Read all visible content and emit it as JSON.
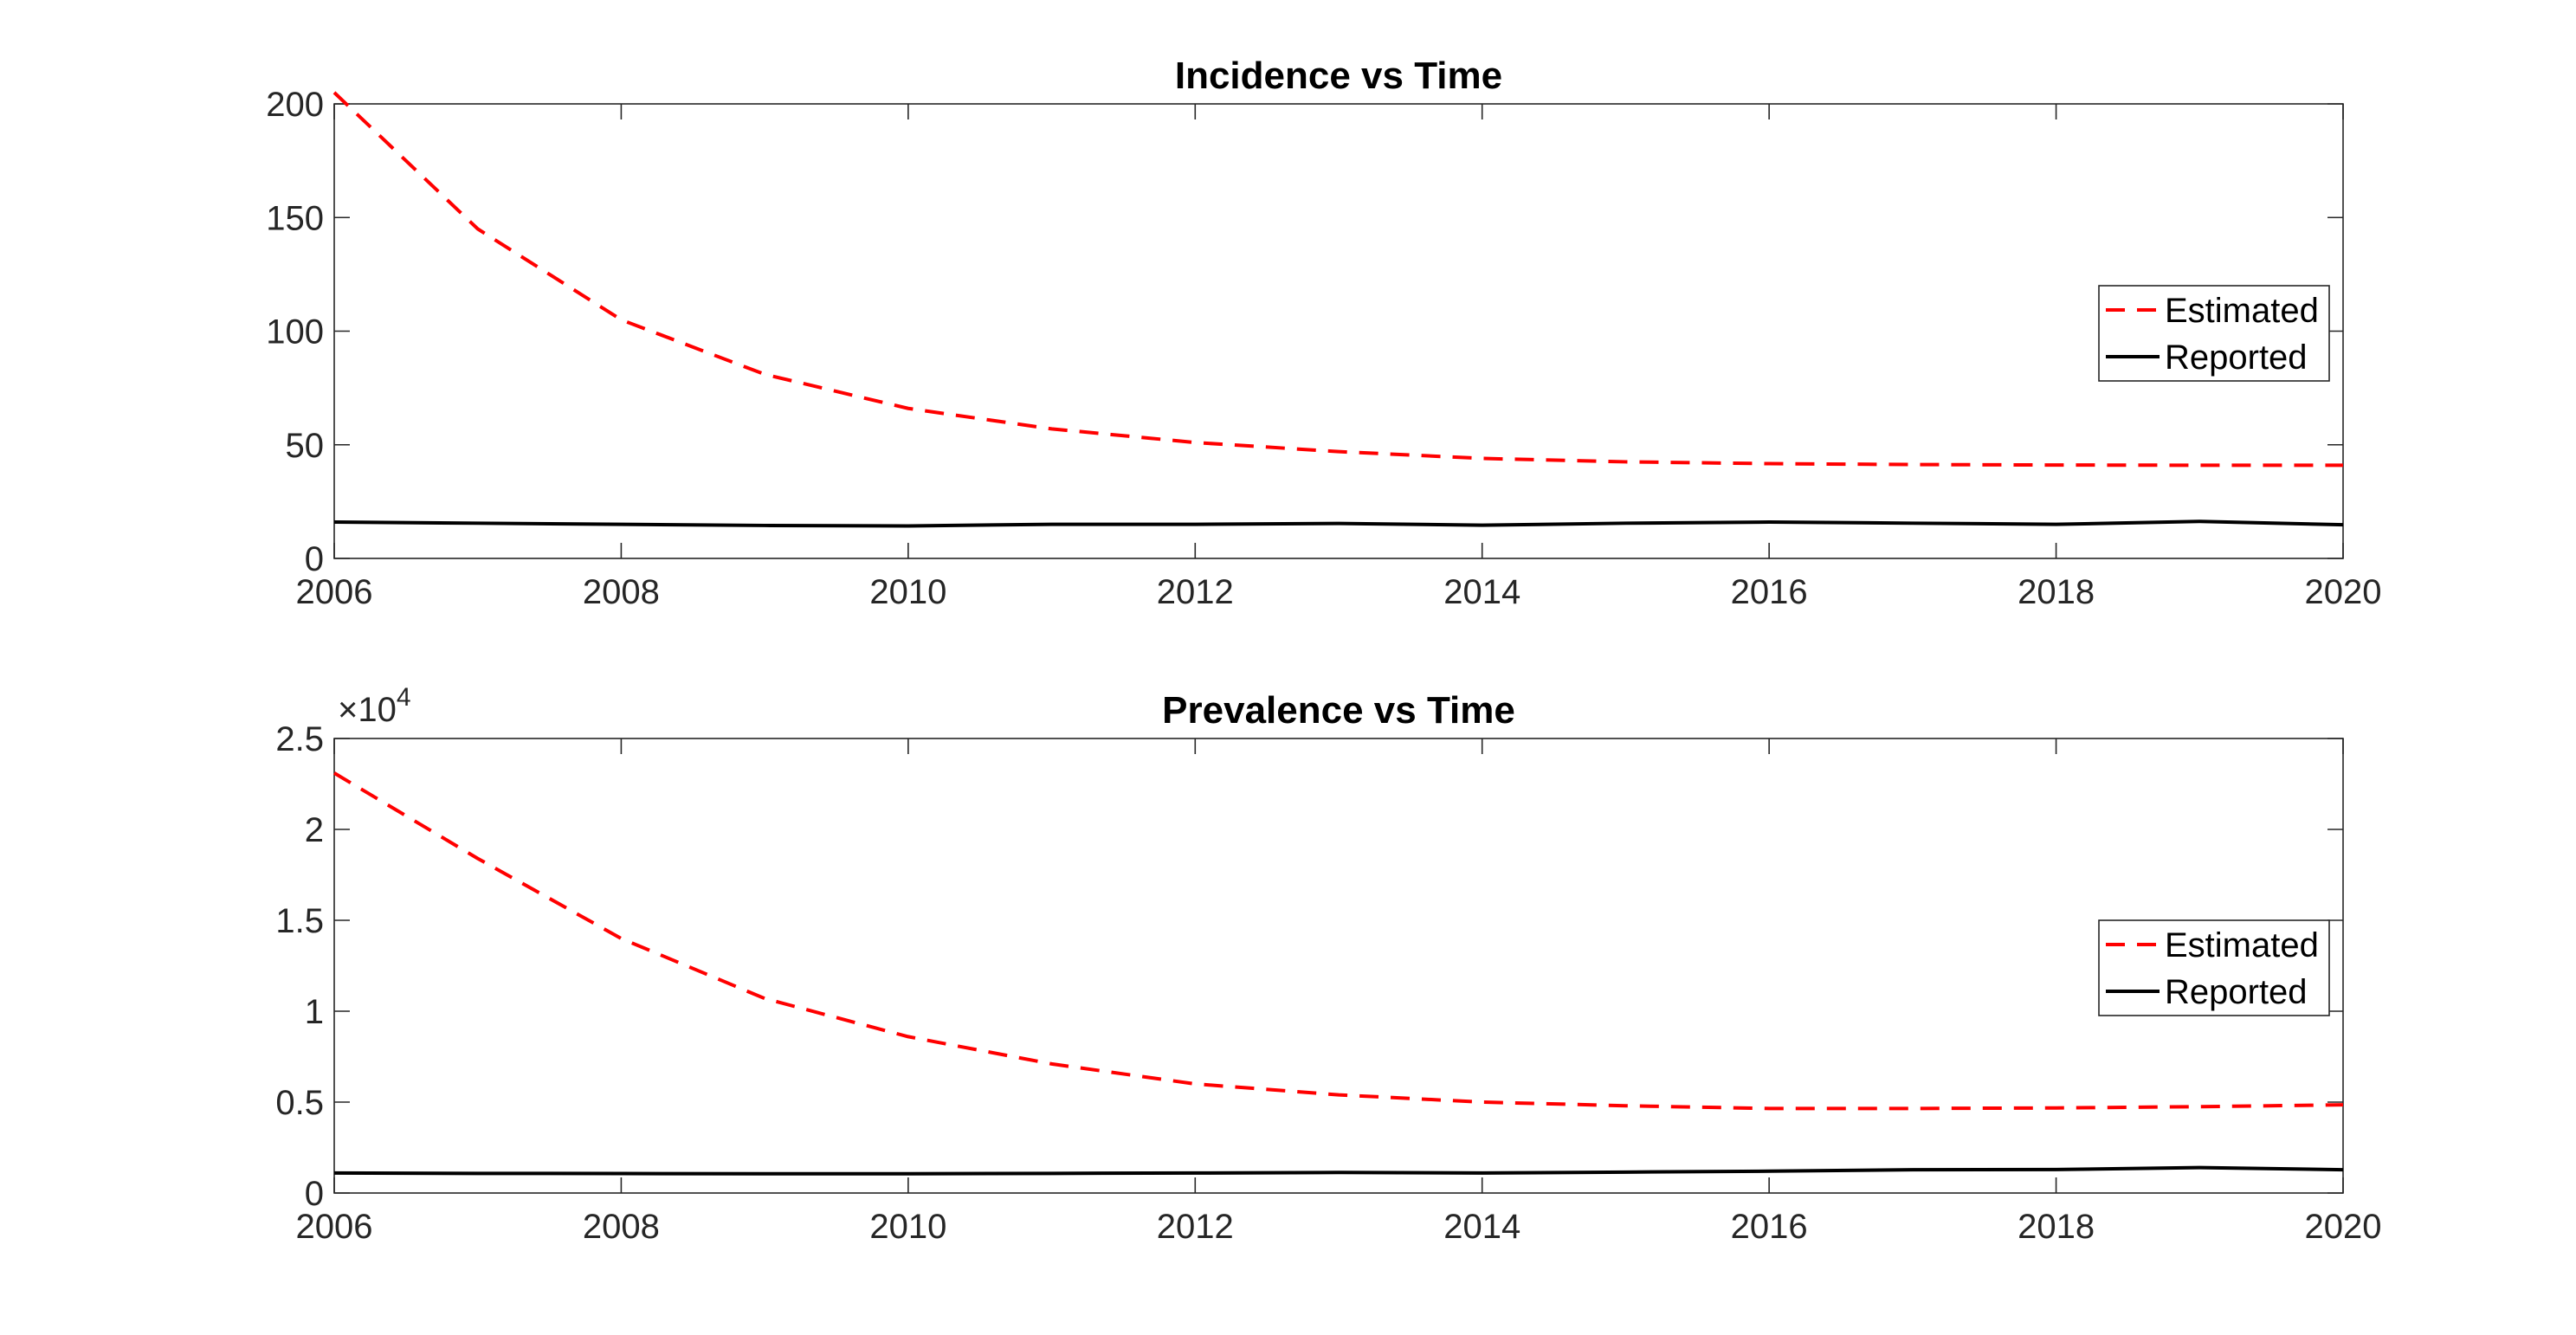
{
  "chart_data": [
    {
      "type": "line",
      "title": "Incidence vs Time",
      "xlabel": "",
      "ylabel": "",
      "x": [
        2006,
        2007,
        2008,
        2009,
        2010,
        2011,
        2012,
        2013,
        2014,
        2015,
        2016,
        2017,
        2018,
        2019,
        2020
      ],
      "xlim": [
        2006,
        2020
      ],
      "ylim": [
        0,
        200
      ],
      "xticks": [
        2006,
        2008,
        2010,
        2012,
        2014,
        2016,
        2018,
        2020
      ],
      "yticks": [
        0,
        50,
        100,
        150,
        200
      ],
      "ytick_labels": [
        "0",
        "50",
        "100",
        "150",
        "200"
      ],
      "exponent_label": "",
      "grid": false,
      "legend_position": "right",
      "series": [
        {
          "name": "Estimated",
          "color": "#ff0000",
          "style": "dashed",
          "values": [
            205,
            145,
            105,
            81,
            66,
            57,
            51,
            47,
            44,
            42.5,
            41.7,
            41.3,
            41.1,
            41.0,
            41.0
          ]
        },
        {
          "name": "Reported",
          "color": "#000000",
          "style": "solid",
          "values": [
            16,
            15.5,
            15,
            14.5,
            14.3,
            15,
            15,
            15.4,
            14.6,
            15.5,
            16,
            15.5,
            15,
            16.3,
            14.8
          ]
        }
      ]
    },
    {
      "type": "line",
      "title": "Prevalence vs Time",
      "xlabel": "",
      "ylabel": "",
      "x": [
        2006,
        2007,
        2008,
        2009,
        2010,
        2011,
        2012,
        2013,
        2014,
        2015,
        2016,
        2017,
        2018,
        2019,
        2020
      ],
      "xlim": [
        2006,
        2020
      ],
      "ylim": [
        0,
        25000
      ],
      "xticks": [
        2006,
        2008,
        2010,
        2012,
        2014,
        2016,
        2018,
        2020
      ],
      "yticks": [
        0,
        5000,
        10000,
        15000,
        20000,
        25000
      ],
      "ytick_labels": [
        "0",
        "0.5",
        "1",
        "1.5",
        "2",
        "2.5"
      ],
      "exponent_label": "×10",
      "exponent_power": "4",
      "grid": false,
      "legend_position": "right",
      "series": [
        {
          "name": "Estimated",
          "color": "#ff0000",
          "style": "dashed",
          "values": [
            23100,
            18400,
            14000,
            10700,
            8600,
            7100,
            6000,
            5400,
            5000,
            4800,
            4650,
            4650,
            4680,
            4750,
            4850
          ]
        },
        {
          "name": "Reported",
          "color": "#000000",
          "style": "solid",
          "values": [
            1100,
            1080,
            1070,
            1060,
            1060,
            1080,
            1100,
            1130,
            1100,
            1150,
            1200,
            1280,
            1290,
            1400,
            1280
          ]
        }
      ]
    }
  ]
}
